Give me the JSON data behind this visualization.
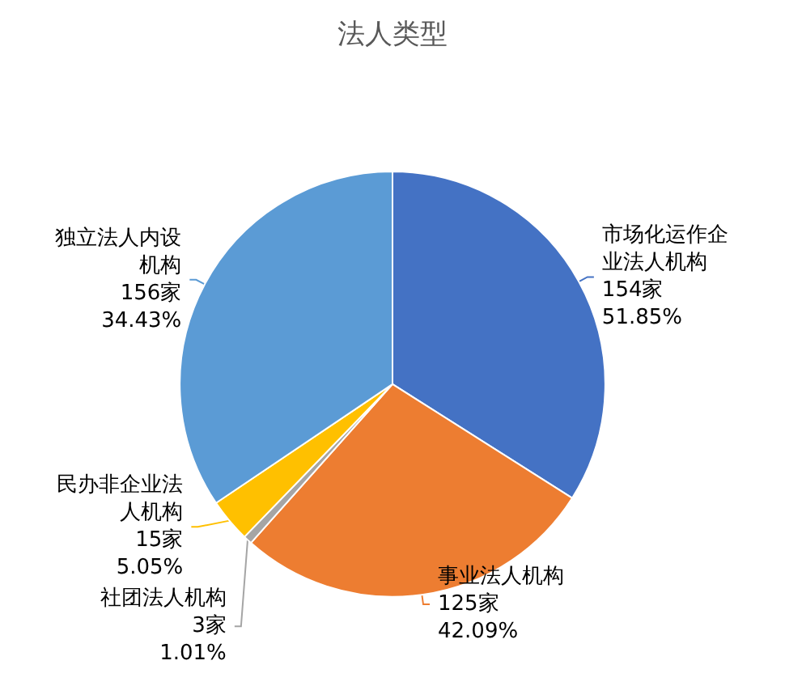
{
  "chart_data": {
    "type": "pie",
    "title": "法人类型",
    "categories": [
      "市场化运作企业法人机构",
      "事业法人机构",
      "社团法人机构",
      "民办非企业法人机构",
      "独立法人内设机构"
    ],
    "values": [
      154,
      125,
      3,
      15,
      156
    ],
    "value_labels": [
      "154家 51.85%",
      "125家 42.09%",
      "3家 1.01%",
      "15家 5.05%",
      "156家 34.43%"
    ],
    "colors": [
      "#4472c4",
      "#ed7d31",
      "#a5a5a5",
      "#ffc000",
      "#5b9bd5"
    ],
    "legend": false
  }
}
